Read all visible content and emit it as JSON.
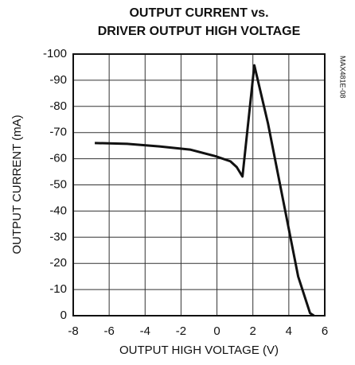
{
  "chart_data": {
    "type": "line",
    "title": [
      "OUTPUT CURRENT vs.",
      "DRIVER OUTPUT HIGH VOLTAGE"
    ],
    "xlabel": "OUTPUT HIGH VOLTAGE (V)",
    "ylabel": "OUTPUT CURRENT (mA)",
    "annotation": "MAX481E-08",
    "x": [
      -6.8,
      -5,
      -3.2,
      -1.5,
      -0.1,
      0.75,
      1.1,
      1.42,
      2.08,
      2.84,
      4.52,
      5.18,
      5.4
    ],
    "series": [
      {
        "name": "OUTPUT CURRENT",
        "color": "#111111",
        "values": [
          -66,
          -65.7,
          -64.7,
          -63.5,
          -61,
          -59,
          -56.8,
          -53.2,
          -95.7,
          -73.5,
          -15,
          -1,
          0
        ]
      }
    ],
    "xlim": [
      -8,
      6
    ],
    "xticks": [
      -8,
      -6,
      -4,
      -2,
      0,
      2,
      4,
      6
    ],
    "ylim": [
      0,
      -100
    ],
    "yticks": [
      0,
      -10,
      -20,
      -30,
      -40,
      -50,
      -60,
      -70,
      -80,
      -90,
      -100
    ],
    "grid": true
  }
}
